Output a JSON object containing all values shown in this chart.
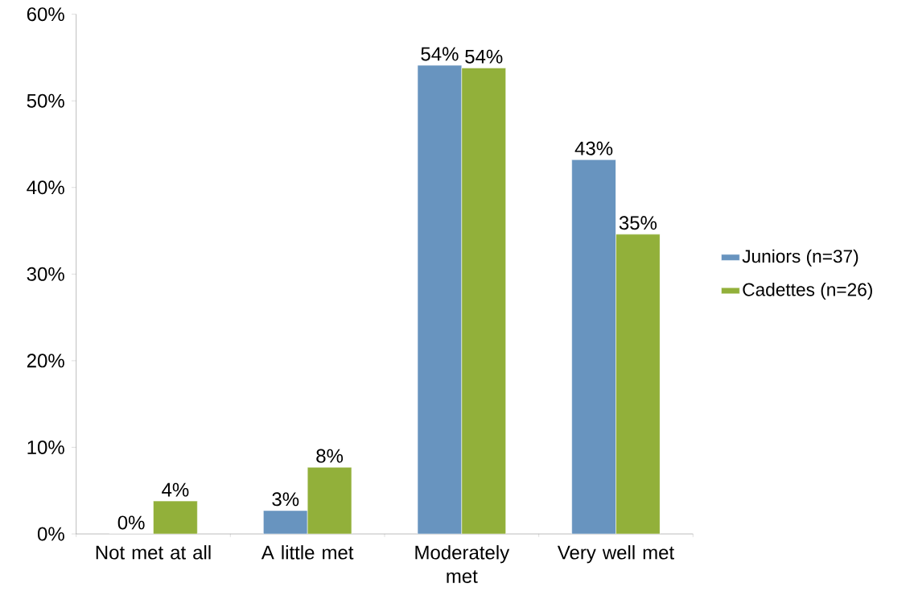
{
  "chart_data": {
    "type": "bar",
    "categories": [
      "Not met at all",
      "A little met",
      "Moderately met",
      "Very well met"
    ],
    "series": [
      {
        "name": "Juniors (n=37)",
        "color": "#6894bf",
        "values": [
          0,
          2.7,
          54.1,
          43.2
        ],
        "value_labels": [
          "0%",
          "3%",
          "54%",
          "43%"
        ]
      },
      {
        "name": "Cadettes (n=26)",
        "color": "#92b03a",
        "values": [
          3.8,
          7.7,
          53.8,
          34.6
        ],
        "value_labels": [
          "4%",
          "8%",
          "54%",
          "35%"
        ]
      }
    ],
    "ylim": [
      0,
      60
    ],
    "yticks": [
      {
        "value": 0,
        "label": "0%"
      },
      {
        "value": 10,
        "label": "10%"
      },
      {
        "value": 20,
        "label": "20%"
      },
      {
        "value": 30,
        "label": "30%"
      },
      {
        "value": 40,
        "label": "40%"
      },
      {
        "value": 50,
        "label": "50%"
      },
      {
        "value": 60,
        "label": "60%"
      }
    ],
    "grid": false,
    "legend": "right"
  }
}
